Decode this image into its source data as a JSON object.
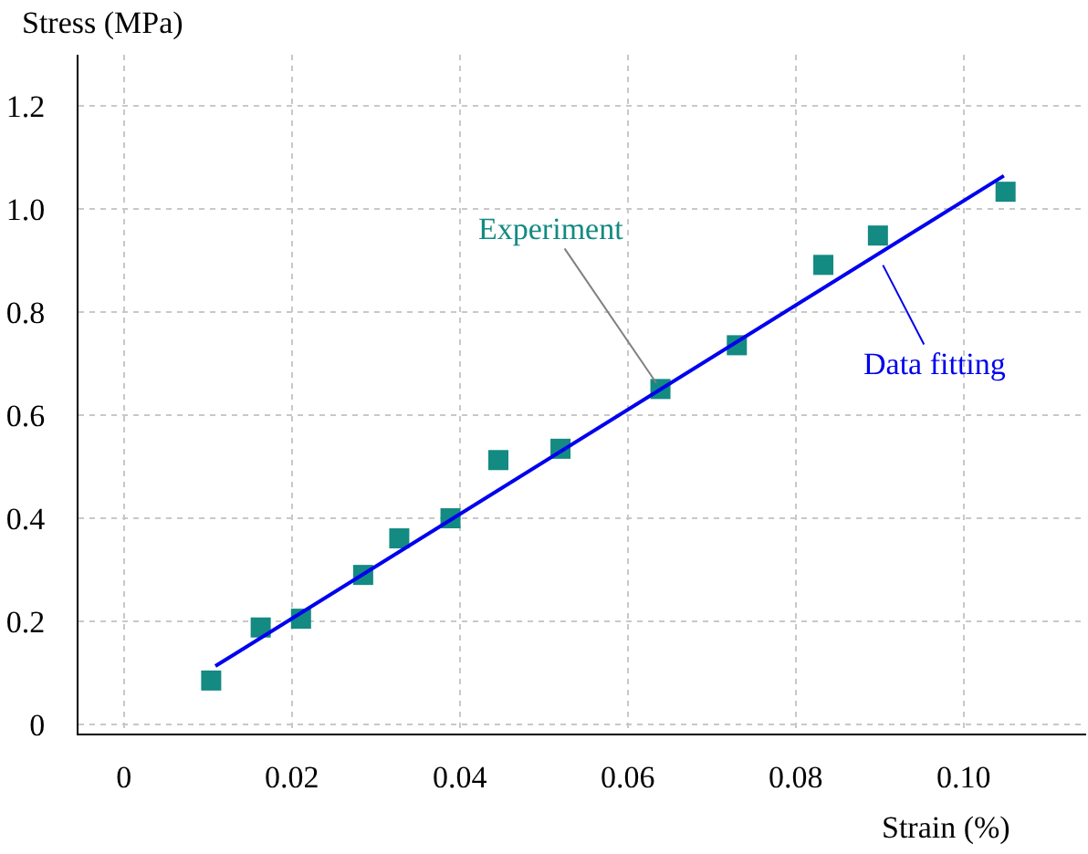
{
  "chart_data": {
    "type": "scatter",
    "xlabel": "Strain (%)",
    "ylabel": "Stress (MPa)",
    "series": [
      {
        "color": "#138a82",
        "marker": "square",
        "x": [
          0.0104,
          0.0163,
          0.0211,
          0.0285,
          0.0328,
          0.0389,
          0.0446,
          0.052,
          0.0639,
          0.073,
          0.0833,
          0.0898,
          0.105
        ],
        "values": [
          0.085,
          0.188,
          0.205,
          0.29,
          0.361,
          0.4,
          0.513,
          0.535,
          0.651,
          0.736,
          0.892,
          0.949,
          1.034
        ]
      },
      {
        "type": "line",
        "color": "#0000ee",
        "line_style": "solid",
        "x": [
          0.0109,
          0.1048
        ],
        "values": [
          0.113,
          1.065
        ]
      }
    ],
    "annotations": [
      {
        "text": "Experiment",
        "x": 0.0639,
        "y": 0.651
      },
      {
        "text": "Data fitting",
        "x": 0.09,
        "y": 0.904
      }
    ],
    "xlim": [
      -0.0054,
      0.1146
    ],
    "ylim": [
      -0.018,
      1.3
    ],
    "xticks": [
      0,
      0.02,
      0.04,
      0.06,
      0.08,
      {
        "value": 0.1,
        "label": "0.10"
      }
    ],
    "yticks": [
      0,
      0.2,
      0.4,
      0.6,
      0.8,
      {
        "value": 1.0,
        "label": "1.0"
      },
      1.2
    ],
    "grid": true
  }
}
